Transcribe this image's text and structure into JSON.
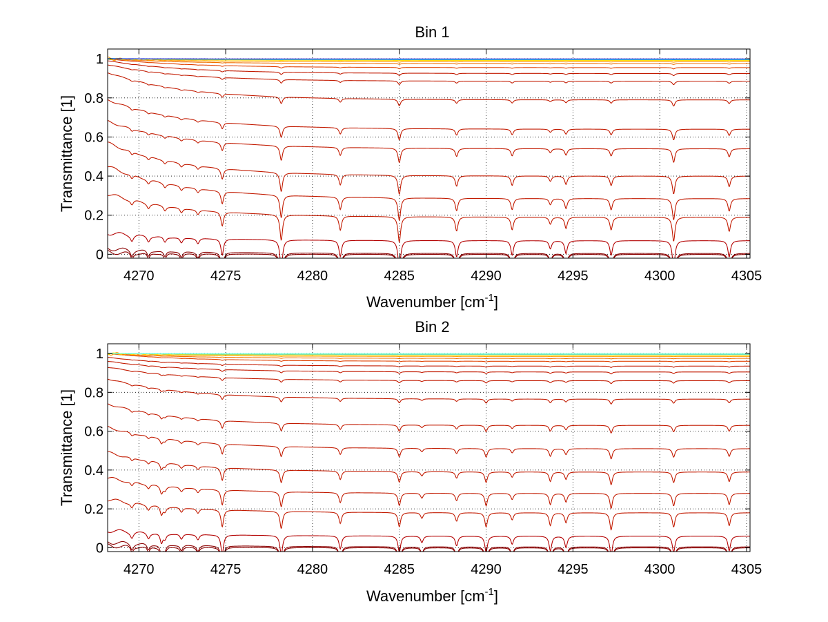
{
  "chart_data": [
    {
      "type": "line",
      "title": "Bin 1",
      "xlabel": "Wavenumber [cm",
      "xlabel_sup": "-1",
      "xlabel_close": "]",
      "ylabel": "Transmittance [1]",
      "xlim": [
        4268.2,
        4305.2
      ],
      "ylim": [
        -0.02,
        1.05
      ],
      "xticks": [
        4270,
        4275,
        4280,
        4285,
        4290,
        4295,
        4300,
        4305
      ],
      "yticks": [
        0,
        0.2,
        0.4,
        0.6,
        0.8,
        1
      ],
      "xtick_labels": [
        "4270",
        "4275",
        "4280",
        "4285",
        "4290",
        "4295",
        "4300",
        "4305"
      ],
      "ytick_labels": [
        "0",
        "0.2",
        "0.4",
        "0.6",
        "0.8",
        "1"
      ],
      "grid": true,
      "absorption_lines": [
        4274.8,
        4278.2,
        4281.6,
        4285.0,
        4288.3,
        4291.5,
        4293.7,
        4294.6,
        4297.2,
        4300.8,
        4304.0
      ],
      "absorption_depths": [
        0.1,
        0.18,
        0.1,
        0.18,
        0.1,
        0.09,
        0.05,
        0.08,
        0.09,
        0.17,
        0.1
      ],
      "series": [
        {
          "plateau": 0.0,
          "start": 0.01,
          "color": "#8b0000"
        },
        {
          "plateau": 0.005,
          "start": 0.03,
          "color": "#8b0000"
        },
        {
          "plateau": 0.07,
          "start": 0.11,
          "color": "#b30000"
        },
        {
          "plateau": 0.19,
          "start": 0.31,
          "color": "#c21a00"
        },
        {
          "plateau": 0.285,
          "start": 0.45,
          "color": "#c21a00"
        },
        {
          "plateau": 0.4,
          "start": 0.57,
          "color": "#c21a00"
        },
        {
          "plateau": 0.54,
          "start": 0.68,
          "color": "#c21a00"
        },
        {
          "plateau": 0.64,
          "start": 0.79,
          "color": "#c21a00"
        },
        {
          "plateau": 0.79,
          "start": 0.93,
          "color": "#c21a00"
        },
        {
          "plateau": 0.885,
          "start": 0.97,
          "color": "#c21a00"
        },
        {
          "plateau": 0.925,
          "start": 0.99,
          "color": "#c21a00"
        },
        {
          "plateau": 0.955,
          "start": 1.0,
          "color": "#e04000"
        },
        {
          "plateau": 0.975,
          "start": 1.0,
          "color": "#f07000"
        },
        {
          "plateau": 0.985,
          "start": 1.0,
          "color": "#ffa000"
        },
        {
          "plateau": 0.992,
          "start": 1.0,
          "color": "#ffdd00"
        },
        {
          "plateau": 0.996,
          "start": 1.0,
          "color": "#40e0d0"
        },
        {
          "plateau": 0.998,
          "start": 1.0,
          "color": "#1e90ff"
        },
        {
          "plateau": 0.999,
          "start": 1.0,
          "color": "#0000cd"
        }
      ]
    },
    {
      "type": "line",
      "title": "Bin 2",
      "xlabel": "Wavenumber [cm",
      "xlabel_sup": "-1",
      "xlabel_close": "]",
      "ylabel": "Transmittance [1]",
      "xlim": [
        4268.2,
        4305.2
      ],
      "ylim": [
        -0.02,
        1.05
      ],
      "xticks": [
        4270,
        4275,
        4280,
        4285,
        4290,
        4295,
        4300,
        4305
      ],
      "yticks": [
        0,
        0.2,
        0.4,
        0.6,
        0.8,
        1
      ],
      "xtick_labels": [
        "4270",
        "4275",
        "4280",
        "4285",
        "4290",
        "4295",
        "4300",
        "4305"
      ],
      "ytick_labels": [
        "0",
        "0.2",
        "0.4",
        "0.6",
        "0.8",
        "1"
      ],
      "grid": true,
      "absorption_lines": [
        4271.3,
        4274.8,
        4278.2,
        4281.6,
        4285.0,
        4286.3,
        4288.3,
        4290.0,
        4291.5,
        4293.7,
        4294.6,
        4297.2,
        4300.8,
        4304.0
      ],
      "absorption_depths": [
        0.06,
        0.12,
        0.12,
        0.08,
        0.1,
        0.04,
        0.06,
        0.1,
        0.05,
        0.09,
        0.07,
        0.12,
        0.1,
        0.09
      ],
      "series": [
        {
          "plateau": 0.0,
          "start": 0.01,
          "color": "#8b0000"
        },
        {
          "plateau": 0.005,
          "start": 0.03,
          "color": "#8b0000"
        },
        {
          "plateau": 0.06,
          "start": 0.09,
          "color": "#b30000"
        },
        {
          "plateau": 0.18,
          "start": 0.25,
          "color": "#c21a00"
        },
        {
          "plateau": 0.28,
          "start": 0.36,
          "color": "#c21a00"
        },
        {
          "plateau": 0.39,
          "start": 0.49,
          "color": "#c21a00"
        },
        {
          "plateau": 0.51,
          "start": 0.62,
          "color": "#c21a00"
        },
        {
          "plateau": 0.63,
          "start": 0.74,
          "color": "#c21a00"
        },
        {
          "plateau": 0.765,
          "start": 0.87,
          "color": "#c21a00"
        },
        {
          "plateau": 0.86,
          "start": 0.93,
          "color": "#c21a00"
        },
        {
          "plateau": 0.905,
          "start": 0.96,
          "color": "#c21a00"
        },
        {
          "plateau": 0.935,
          "start": 0.98,
          "color": "#c21a00"
        },
        {
          "plateau": 0.96,
          "start": 1.0,
          "color": "#e04000"
        },
        {
          "plateau": 0.975,
          "start": 1.0,
          "color": "#f07000"
        },
        {
          "plateau": 0.985,
          "start": 1.0,
          "color": "#ffa000"
        },
        {
          "plateau": 0.992,
          "start": 1.0,
          "color": "#ffdd00"
        },
        {
          "plateau": 0.996,
          "start": 1.0,
          "color": "#40e0d0"
        },
        {
          "plateau": 0.999,
          "start": 1.0,
          "color": "#7fffd4"
        }
      ]
    }
  ]
}
